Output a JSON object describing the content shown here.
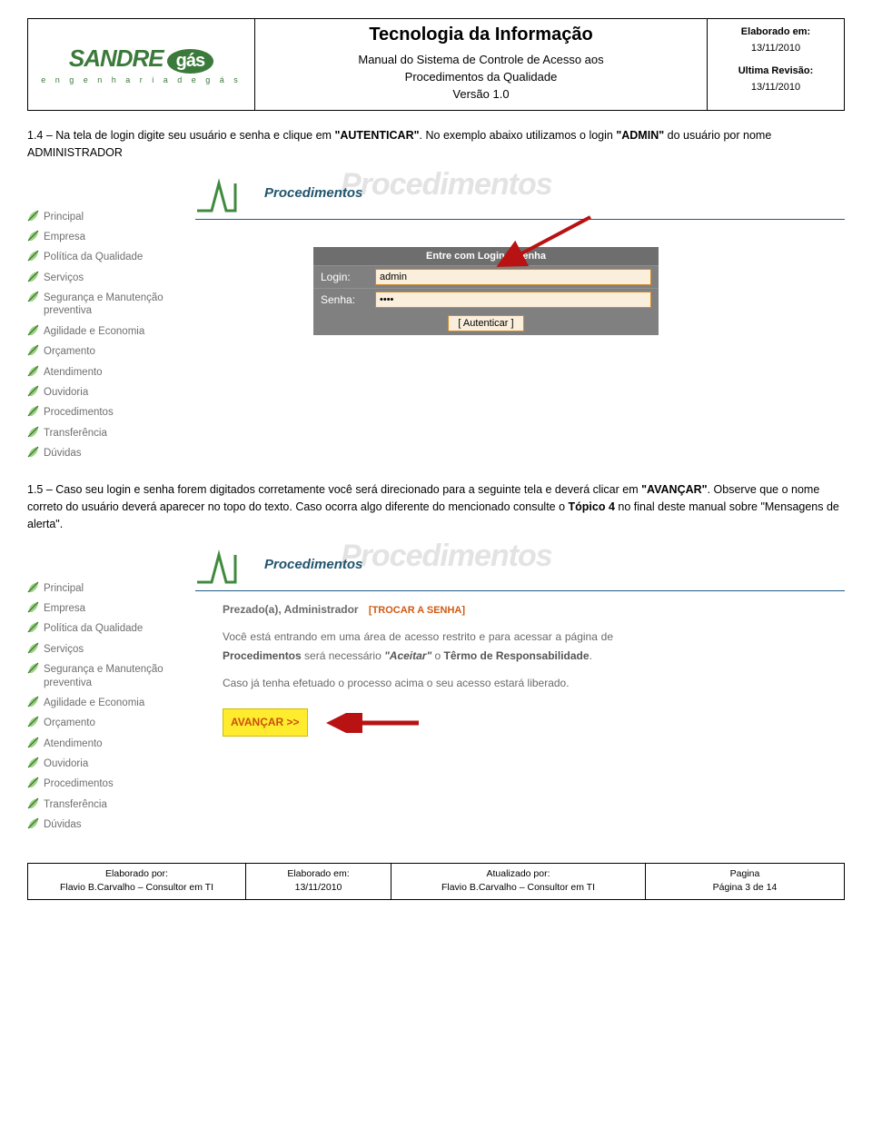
{
  "header": {
    "logo_main": "SANDRE",
    "logo_gas": "gás",
    "logo_tag": "e n g e n h a r i a   d e   g á s",
    "title": "Tecnologia da Informação",
    "subtitle1": "Manual do Sistema de Controle de Acesso aos",
    "subtitle2": "Procedimentos da Qualidade",
    "version": "Versão 1.0",
    "elab_lbl": "Elaborado em:",
    "elab_date": "13/11/2010",
    "rev_lbl": "Ultima Revisão:",
    "rev_date": "13/11/2010"
  },
  "section14": {
    "num": "1.4 – ",
    "text_a": "Na tela de login digite seu usuário e senha e clique em ",
    "kw1": "\"AUTENTICAR\"",
    "text_b": ". No exemplo abaixo utilizamos o login ",
    "kw2": "\"ADMIN\"",
    "text_c": " do usuário por nome ADMINISTRADOR"
  },
  "sidebar_items": [
    "Principal",
    "Empresa",
    "Política da Qualidade",
    "Serviços",
    "Segurança e Manutenção preventiva",
    "Agilidade e Economia",
    "Orçamento",
    "Atendimento",
    "Ouvidoria",
    "Procedimentos",
    "Transferência",
    "Dúvidas"
  ],
  "proc": {
    "watermark": "Procedimentos",
    "heading": "Procedimentos",
    "squiggle_color": "#3f8a3d",
    "line_color": "#1f5b86"
  },
  "login": {
    "title": "Entre com Login e Senha",
    "login_lbl": "Login:",
    "login_val": "admin",
    "senha_lbl": "Senha:",
    "senha_val": "••••",
    "auth_btn": "[  Autenticar  ]"
  },
  "section15": {
    "num": "1.5 – ",
    "text_a": "Caso seu login e senha forem digitados corretamente você será direcionado para a seguinte tela e deverá clicar em ",
    "kw1": "\"AVANÇAR\"",
    "text_b": ". Observe que o nome correto do usuário deverá aparecer no topo do texto. Caso ocorra algo diferente do mencionado consulte o ",
    "kw2": "Tópico 4",
    "text_c": " no final deste manual sobre \"Mensagens de alerta\"."
  },
  "welcome": {
    "greet": "Prezado(a), Administrador",
    "trocar": "[TROCAR A SENHA]",
    "p1_a": "Você está entrando em uma área de acesso restrito e para acessar a página de ",
    "p1_b": "Procedimentos",
    "p1_c": " será necessário ",
    "p1_d": "\"Aceitar\"",
    "p1_e": " o ",
    "p1_f": "Têrmo de Responsabilidade",
    "p1_g": ".",
    "p2": "Caso já tenha efetuado o processo acima o seu acesso estará liberado.",
    "btn": "AVANÇAR >>"
  },
  "footer": {
    "c1_t": "Elaborado por:",
    "c1_v": "Flavio B.Carvalho – Consultor em TI",
    "c2_t": "Elaborado em:",
    "c2_v": "13/11/2010",
    "c3_t": "Atualizado por:",
    "c3_v": "Flavio B.Carvalho – Consultor em TI",
    "c4_t": "Pagina",
    "c4_v": "Página 3 de 14"
  },
  "colors": {
    "arrow": "#b81212",
    "leaf_light": "#9ed082",
    "leaf_dark": "#2e6f2c"
  }
}
